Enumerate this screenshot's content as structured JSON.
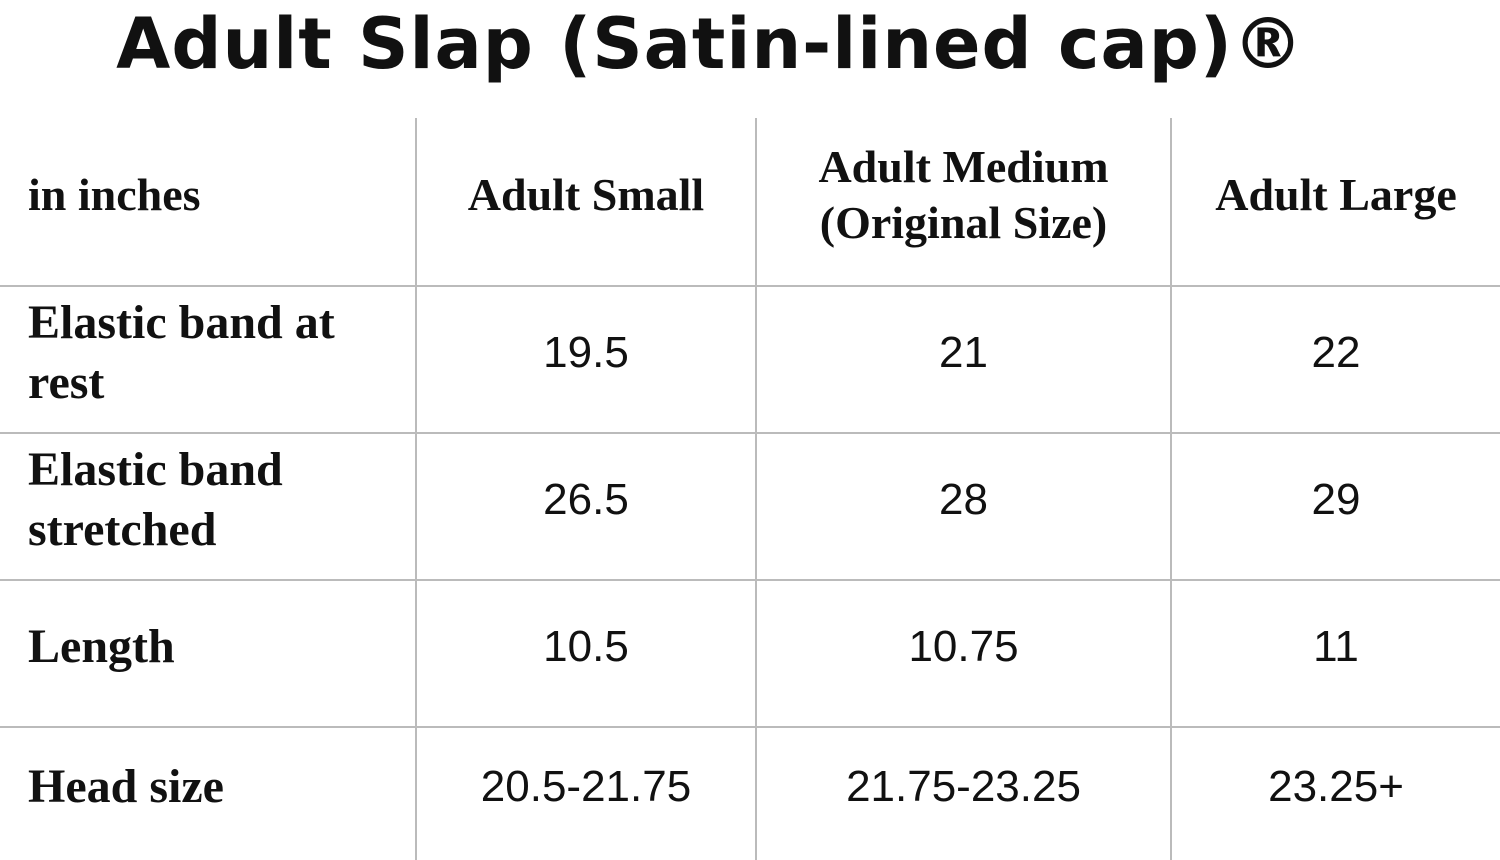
{
  "header": {
    "title": "Adult Slap (Satin-lined cap)®"
  },
  "table": {
    "columns": [
      "in inches",
      "Adult Small",
      "Adult Medium (Original Size)",
      "Adult Large"
    ],
    "rows": [
      [
        "Elastic band at rest",
        "19.5",
        "21",
        "22"
      ],
      [
        "Elastic band stretched",
        "26.5",
        "28",
        "29"
      ],
      [
        "Length",
        "10.5",
        "10.75",
        "11"
      ],
      [
        "Head size",
        "20.5-21.75",
        "21.75-23.25",
        "23.25+"
      ]
    ]
  }
}
